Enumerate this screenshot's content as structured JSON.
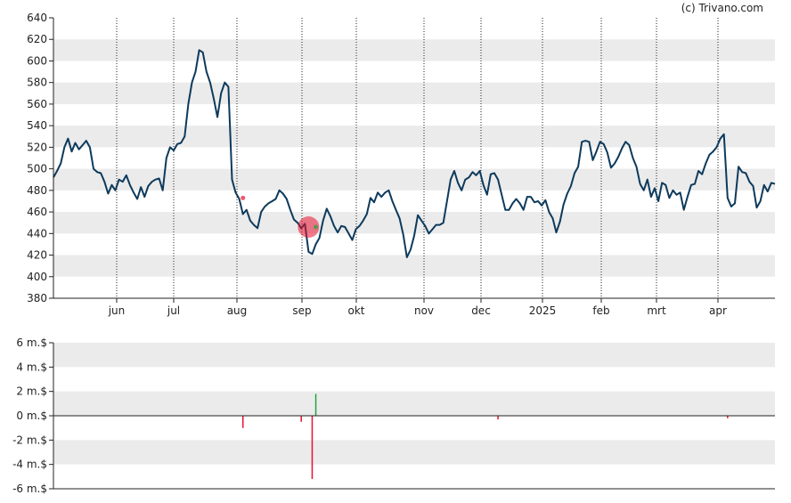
{
  "credit": "(c) Trivano.com",
  "colors": {
    "price_line": "#0d3a5c",
    "band": "#ebebeb",
    "grid": "#222222",
    "negative_bar": "#e8112d",
    "positive_bar": "#23a33a",
    "marker_red": "#e8112d",
    "marker_green": "#23a33a"
  },
  "chart_data": [
    {
      "type": "line",
      "y_ticks": [
        "640",
        "620",
        "600",
        "580",
        "560",
        "540",
        "520",
        "500",
        "480",
        "460",
        "440",
        "420",
        "400",
        "380"
      ],
      "ylim": [
        380,
        640
      ],
      "x_ticks": [
        "jun",
        "jul",
        "aug",
        "sep",
        "okt",
        "nov",
        "dec",
        "2025",
        "feb",
        "mrt",
        "apr"
      ],
      "grid": "vertical dotted at month starts, alternating horizontal bands",
      "series": [
        {
          "values": [
            492,
            498,
            505,
            520,
            528,
            516,
            524,
            518,
            522,
            526,
            520,
            500,
            497,
            496,
            488,
            477,
            485,
            480,
            490,
            488,
            494,
            485,
            478,
            472,
            483,
            474,
            484,
            488,
            490,
            491,
            480,
            510,
            520,
            517,
            523,
            524,
            530,
            560,
            580,
            590,
            610,
            608,
            590,
            580,
            565,
            548,
            570,
            580,
            576,
            490,
            478,
            472,
            458,
            462,
            452,
            448,
            445,
            460,
            465,
            468,
            470,
            472,
            480,
            477,
            472,
            462,
            453,
            450,
            445,
            449,
            423,
            421,
            430,
            436,
            452,
            463,
            456,
            447,
            441,
            447,
            446,
            440,
            434,
            444,
            447,
            452,
            458,
            473,
            469,
            478,
            474,
            478,
            480,
            470,
            462,
            454,
            439,
            418,
            425,
            438,
            457,
            452,
            447,
            440,
            444,
            448,
            448,
            450,
            470,
            490,
            498,
            487,
            480,
            490,
            492,
            497,
            494,
            498,
            485,
            476,
            495,
            496,
            490,
            476,
            462,
            462,
            468,
            472,
            468,
            462,
            474,
            474,
            469,
            470,
            466,
            471,
            460,
            454,
            441,
            451,
            467,
            477,
            484,
            496,
            502,
            525,
            526,
            525,
            508,
            516,
            525,
            523,
            515,
            501,
            505,
            511,
            519,
            525,
            522,
            510,
            502,
            486,
            480,
            490,
            474,
            482,
            470,
            487,
            485,
            473,
            480,
            476,
            478,
            462,
            474,
            485,
            486,
            498,
            495,
            505,
            513,
            516,
            520,
            528,
            532,
            473,
            465,
            468,
            502,
            497,
            496,
            488,
            484,
            464,
            470,
            485,
            479,
            487,
            486
          ]
        }
      ],
      "markers": [
        {
          "date_index": 52,
          "price": 473,
          "kind": "sale",
          "size": "small"
        },
        {
          "date_index": 70,
          "price": 446,
          "kind": "sale",
          "size": "large"
        },
        {
          "date_index": 72,
          "price": 446,
          "kind": "purchase",
          "size": "small"
        }
      ]
    },
    {
      "type": "bar",
      "y_ticks": [
        "6 m.$",
        "4 m.$",
        "2 m.$",
        "0 m.$",
        "-2 m.$",
        "-4 m.$",
        "-6 m.$"
      ],
      "ylim": [
        -6,
        6
      ],
      "grid": "alternating horizontal bands, zero line",
      "bars": [
        {
          "date_index": 52,
          "value": -1.0
        },
        {
          "date_index": 68,
          "value": -0.5
        },
        {
          "date_index": 71,
          "value": -5.2
        },
        {
          "date_index": 72,
          "value": 1.8
        },
        {
          "date_index": 122,
          "value": -0.3
        },
        {
          "date_index": 185,
          "value": -0.2
        }
      ]
    }
  ]
}
